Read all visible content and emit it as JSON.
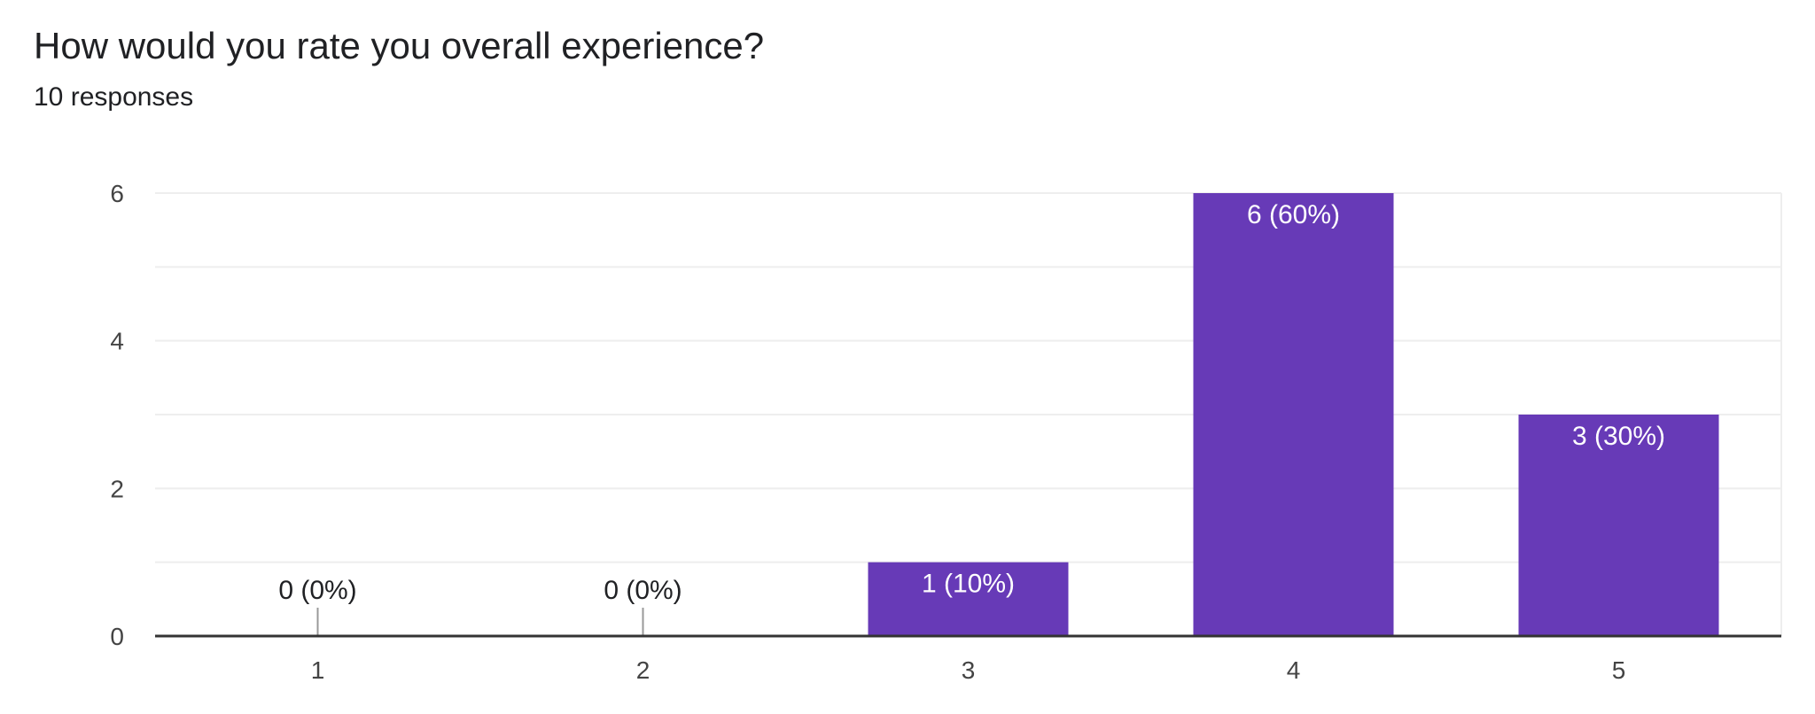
{
  "question": {
    "title": "How would you rate you overall experience?",
    "responses": "10 responses"
  },
  "colors": {
    "bar": "#673AB7",
    "bar_label_inside": "#ffffff",
    "bar_label_outside": "#202124",
    "gridline": "#eeeeee",
    "baseline": "#333333",
    "tick_text": "#444444"
  },
  "chart_data": {
    "type": "bar",
    "title": "How would you rate you overall experience?",
    "subtitle": "10 responses",
    "categories": [
      "1",
      "2",
      "3",
      "4",
      "5"
    ],
    "values": [
      0,
      0,
      1,
      6,
      3
    ],
    "data_labels": [
      "0 (0%)",
      "0 (0%)",
      "1 (10%)",
      "6 (60%)",
      "3 (30%)"
    ],
    "y_ticks": [
      0,
      2,
      4,
      6
    ],
    "ylim": [
      0,
      6
    ],
    "grid": true,
    "legend": "none"
  }
}
